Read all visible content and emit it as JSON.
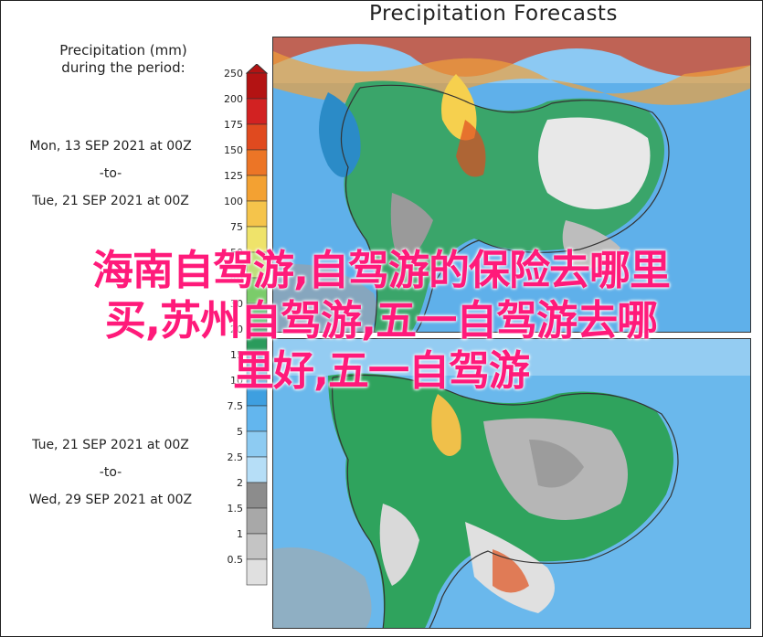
{
  "title": "Precipitation Forecasts",
  "legend": {
    "title_line1": "Precipitation (mm)",
    "title_line2": "during the period:",
    "ticks": [
      "250",
      "200",
      "175",
      "150",
      "125",
      "100",
      "75",
      "50",
      "40",
      "30",
      "20",
      "15",
      "10",
      "7.5",
      "5",
      "2.5",
      "2",
      "1.5",
      "1",
      "0.5"
    ],
    "colors": [
      "#b31313",
      "#d22222",
      "#e04a1f",
      "#ec7526",
      "#f3a132",
      "#f5c44b",
      "#efe36a",
      "#bfe07a",
      "#7bcc6a",
      "#3eb357",
      "#2a9b5c",
      "#2c8ec6",
      "#3e9fe0",
      "#63b6ee",
      "#8dcbf2",
      "#b6def7",
      "#8c8c8c",
      "#a8a8a8",
      "#c4c4c4",
      "#e0e0e0"
    ]
  },
  "periods": [
    {
      "start": "Mon, 13 SEP 2021 at 00Z",
      "sep": "-to-",
      "end": "Tue, 21 SEP 2021 at 00Z"
    },
    {
      "start": "Tue, 21 SEP 2021 at 00Z",
      "sep": "-to-",
      "end": "Wed, 29 SEP 2021 at 00Z"
    }
  ],
  "watermark": {
    "line1": "海南自驾游,自驾游的保险去哪里",
    "line2": "买,苏州自驾游,五一自驾游去哪",
    "line3": "里好,五一自驾游"
  }
}
